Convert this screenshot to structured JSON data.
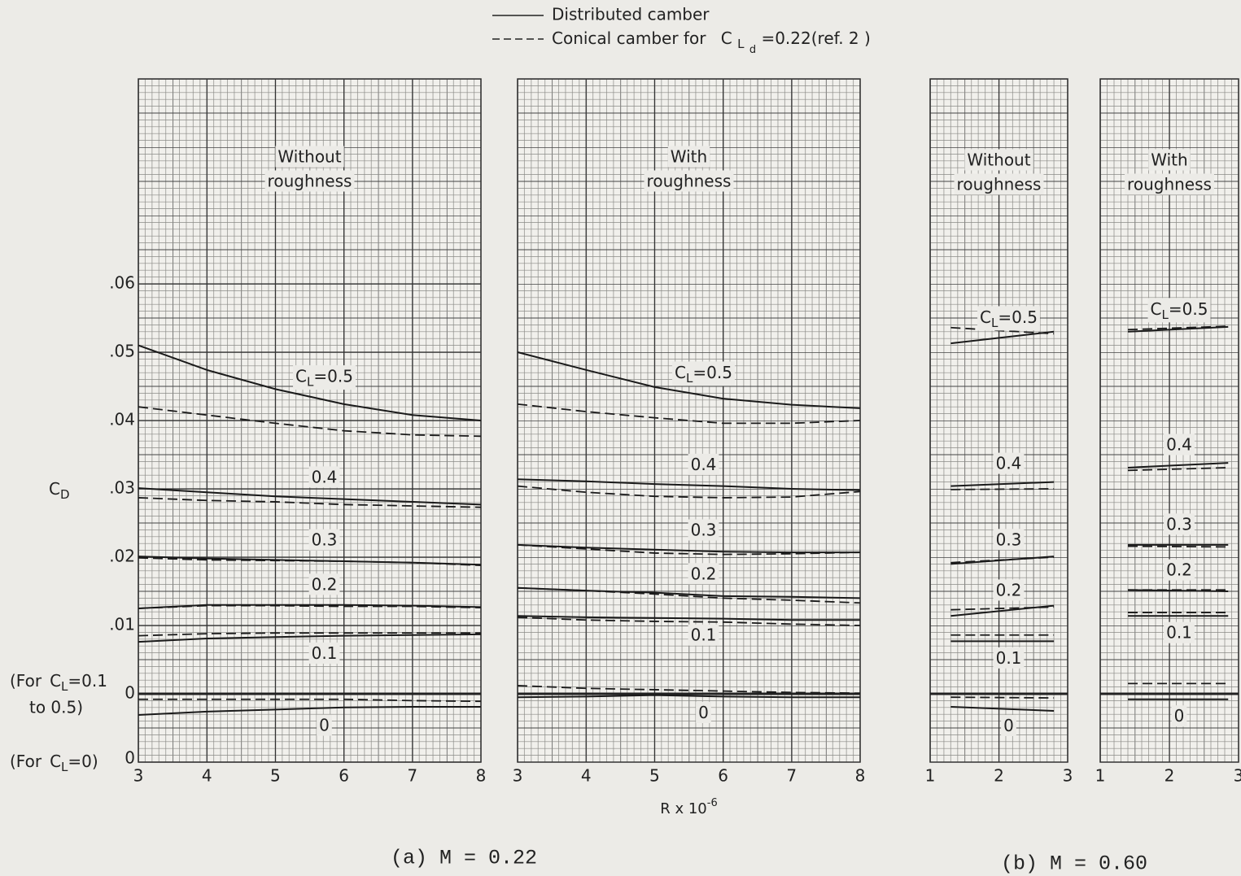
{
  "legend": {
    "solid": "Distributed camber",
    "dashed": {
      "text": "Conical camber for",
      "symbol": "C",
      "sub": "L",
      "subsub": "d",
      "rest": "=0.22(ref. 2 )"
    }
  },
  "captions": [
    "(a) M = 0.22",
    "(b) M = 0.60"
  ],
  "chart_data": [
    {
      "type": "line",
      "title": [
        "Without",
        "roughness"
      ],
      "ylabel": {
        "symbol": "C",
        "sub": "D"
      },
      "ynotes": [
        {
          "text": "(For",
          "symbol": "C",
          "sub": "L",
          "rest": "=0.1",
          "line2": "to 0.5)"
        },
        {
          "text": "(For",
          "symbol": "C",
          "sub": "L",
          "rest": "=0)"
        }
      ],
      "xlim": [
        3,
        8
      ],
      "xticks": [
        3,
        4,
        5,
        6,
        7,
        8
      ],
      "ylim": [
        -0.01,
        0.09
      ],
      "yticks": [
        {
          "value": 0.06,
          "label": ".06"
        },
        {
          "value": 0.05,
          "label": ".05"
        },
        {
          "value": 0.04,
          "label": ".04"
        },
        {
          "value": 0.03,
          "label": ".03"
        },
        {
          "value": 0.02,
          "label": ".02"
        },
        {
          "value": 0.01,
          "label": ".01"
        },
        0
      ],
      "y2lim": [
        0,
        0.1
      ],
      "y2ticks": [
        0
      ],
      "grid": true,
      "x": [
        3,
        4,
        5,
        6,
        7,
        8
      ],
      "curves": [
        {
          "label": {
            "symbol": "C",
            "sub": "L",
            "text": "=0.5"
          },
          "solid": [
            0.051,
            0.0474,
            0.0446,
            0.0424,
            0.0408,
            0.04
          ],
          "dashed": [
            0.042,
            0.0408,
            0.0396,
            0.0385,
            0.0379,
            0.0377
          ]
        },
        {
          "label": "0.4",
          "solid": [
            0.0301,
            0.0295,
            0.0289,
            0.0285,
            0.0281,
            0.0277
          ],
          "dashed": [
            0.0287,
            0.0283,
            0.0281,
            0.0277,
            0.0275,
            0.0273
          ]
        },
        {
          "label": "0.3",
          "solid": [
            0.0201,
            0.0198,
            0.0196,
            0.0194,
            0.0192,
            0.0189
          ],
          "dashed": [
            0.0199,
            0.0196,
            0.0195,
            0.0194,
            0.0192,
            0.0188
          ]
        },
        {
          "label": "0.2",
          "solid": [
            0.0125,
            0.013,
            0.013,
            0.013,
            0.0129,
            0.0127
          ],
          "dashed": [
            0.0125,
            0.0129,
            0.0129,
            0.0128,
            0.0128,
            0.0126
          ]
        },
        {
          "label": "0.1",
          "solid": [
            0.0076,
            0.0081,
            0.0083,
            0.0085,
            0.0086,
            0.0087
          ],
          "dashed": [
            0.0085,
            0.0088,
            0.0089,
            0.0089,
            0.0089,
            0.0089
          ]
        },
        {
          "label": "0",
          "axis": "y2",
          "solid": [
            0.0069,
            0.0074,
            0.0077,
            0.008,
            0.0081,
            0.0081
          ],
          "dashed": [
            0.0092,
            0.0092,
            0.0092,
            0.0092,
            0.009,
            0.0089
          ]
        }
      ]
    },
    {
      "type": "line",
      "title": [
        "With",
        "roughness"
      ],
      "xlabel": {
        "text": "R x 10",
        "sup": "-6"
      },
      "xlim": [
        3,
        8
      ],
      "xticks": [
        3,
        4,
        5,
        6,
        7,
        8
      ],
      "ylim": [
        -0.01,
        0.09
      ],
      "y2lim": [
        0,
        0.1
      ],
      "grid": true,
      "x": [
        3,
        4,
        5,
        6,
        7,
        8
      ],
      "curves": [
        {
          "label": {
            "symbol": "C",
            "sub": "L",
            "text": "=0.5"
          },
          "solid": [
            0.05,
            0.0474,
            0.0449,
            0.0432,
            0.0423,
            0.0418
          ],
          "dashed": [
            0.0424,
            0.0413,
            0.0404,
            0.0396,
            0.0396,
            0.04
          ]
        },
        {
          "label": "0.4",
          "solid": [
            0.0314,
            0.0311,
            0.0307,
            0.0304,
            0.03,
            0.0298
          ],
          "dashed": [
            0.0304,
            0.0295,
            0.0289,
            0.0287,
            0.0288,
            0.0296
          ]
        },
        {
          "label": "0.3",
          "solid": [
            0.0218,
            0.0214,
            0.0211,
            0.0208,
            0.0207,
            0.0207
          ],
          "dashed": [
            0.0218,
            0.0212,
            0.0206,
            0.0204,
            0.0205,
            0.0207
          ]
        },
        {
          "label": "0.2",
          "solid": [
            0.0155,
            0.0151,
            0.0148,
            0.0143,
            0.0142,
            0.014
          ],
          "dashed": [
            0.0155,
            0.0151,
            0.0146,
            0.014,
            0.0137,
            0.0133
          ]
        },
        {
          "label": "0.1",
          "solid": [
            0.0114,
            0.0112,
            0.0111,
            0.011,
            0.0108,
            0.0108
          ],
          "dashed": [
            0.0112,
            0.0108,
            0.0106,
            0.0105,
            0.0102,
            0.01
          ]
        },
        {
          "label": "0",
          "axis": "y2",
          "solid": [
            0.0095,
            0.0096,
            0.0098,
            0.0096,
            0.0095,
            0.0095
          ],
          "dashed": [
            0.0112,
            0.0108,
            0.0106,
            0.0104,
            0.0102,
            0.0101
          ]
        }
      ]
    },
    {
      "type": "line",
      "title": [
        "Without",
        "roughness"
      ],
      "xlim": [
        1,
        3
      ],
      "xticks": [
        1,
        2,
        3
      ],
      "ylim": [
        -0.01,
        0.09
      ],
      "y2lim": [
        0,
        0.1
      ],
      "grid": true,
      "x": [
        1.3,
        2.8
      ],
      "curves": [
        {
          "label": {
            "symbol": "C",
            "sub": "L",
            "text": "=0.5"
          },
          "solid": [
            0.0513,
            0.053
          ],
          "dashed": [
            0.0536,
            0.0527
          ]
        },
        {
          "label": "0.4",
          "solid": [
            0.0304,
            0.031
          ],
          "dashed": [
            0.0299,
            0.03
          ]
        },
        {
          "label": "0.3",
          "solid": [
            0.019,
            0.0201
          ],
          "dashed": [
            0.0192,
            0.02
          ]
        },
        {
          "label": "0.2",
          "solid": [
            0.0114,
            0.0129
          ],
          "dashed": [
            0.0123,
            0.0127
          ]
        },
        {
          "label": "0.1",
          "solid": [
            0.0077,
            0.0077
          ],
          "dashed": [
            0.0086,
            0.0086
          ]
        },
        {
          "label": "0",
          "axis": "y2",
          "solid": [
            0.0081,
            0.0075
          ],
          "dashed": [
            0.0095,
            0.0094
          ]
        }
      ]
    },
    {
      "type": "line",
      "title": [
        "With",
        "roughness"
      ],
      "xlim": [
        1,
        3
      ],
      "xticks": [
        1,
        2,
        3
      ],
      "ylim": [
        -0.01,
        0.09
      ],
      "y2lim": [
        0,
        0.1
      ],
      "grid": true,
      "x": [
        1.4,
        2.85
      ],
      "curves": [
        {
          "label": {
            "symbol": "C",
            "sub": "L",
            "text": "=0.5"
          },
          "solid": [
            0.053,
            0.0537
          ],
          "dashed": [
            0.0533,
            0.0538
          ]
        },
        {
          "label": "0.4",
          "solid": [
            0.0331,
            0.0338
          ],
          "dashed": [
            0.0327,
            0.0331
          ]
        },
        {
          "label": "0.3",
          "solid": [
            0.0218,
            0.0218
          ],
          "dashed": [
            0.0216,
            0.0215
          ]
        },
        {
          "label": "0.2",
          "solid": [
            0.0152,
            0.015
          ],
          "dashed": [
            0.0152,
            0.0152
          ]
        },
        {
          "label": "0.1",
          "solid": [
            0.0114,
            0.0114
          ],
          "dashed": [
            0.0119,
            0.0119
          ]
        },
        {
          "label": "0",
          "axis": "y2",
          "solid": [
            0.0092,
            0.0092
          ],
          "dashed": [
            0.0115,
            0.0115
          ]
        }
      ]
    }
  ]
}
